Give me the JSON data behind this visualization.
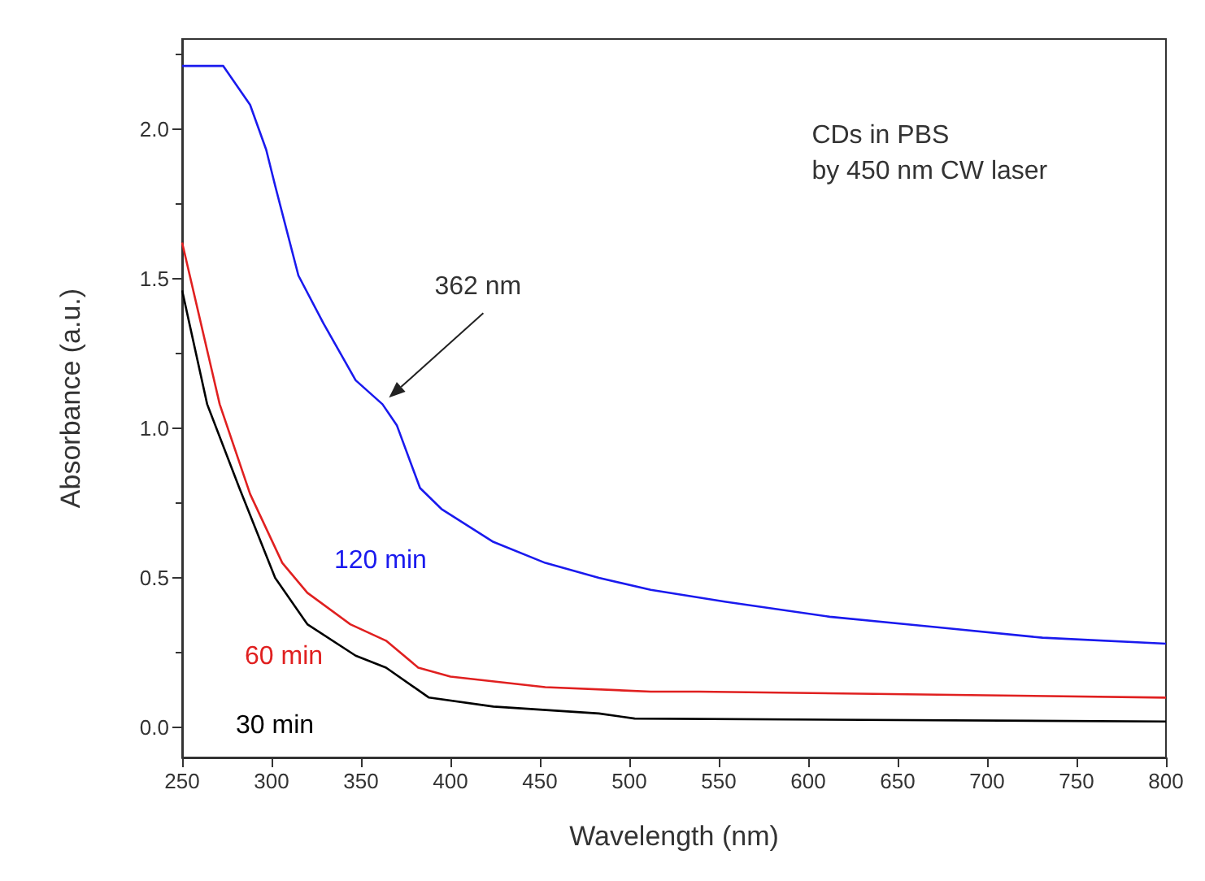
{
  "chart_data": {
    "type": "line",
    "xlabel": "Wavelength (nm)",
    "ylabel": "Absorbance (a.u.)",
    "xlim": [
      250,
      800
    ],
    "xticks": [
      250,
      300,
      350,
      400,
      450,
      500,
      550,
      600,
      650,
      700,
      750,
      800
    ],
    "ylim": [
      -0.1,
      2.3
    ],
    "yticks": [
      {
        "value": 0,
        "label": "0.0"
      },
      0.5,
      {
        "value": 1,
        "label": "1.0"
      },
      1.5,
      {
        "value": 2,
        "label": "2.0"
      }
    ],
    "grid": false,
    "legend": false,
    "marker": "none",
    "line_style": "solid",
    "annotations": [
      "CDs in PBS\nby 450 nm CW laser",
      "362 nm"
    ],
    "series": [
      {
        "name": "30 min",
        "color": "#000000",
        "x": [
          250,
          264,
          282,
          302,
          320,
          347,
          364,
          388,
          424,
          483,
          503,
          800
        ],
        "values": [
          1.46,
          1.08,
          0.8,
          0.5,
          0.345,
          0.24,
          0.2,
          0.1,
          0.07,
          0.047,
          0.03,
          0.02
        ]
      },
      {
        "name": "60 min",
        "color": "#e02020",
        "x": [
          250,
          271,
          288,
          306,
          320,
          344,
          364,
          382,
          400,
          453,
          512,
          539,
          800
        ],
        "values": [
          1.62,
          1.08,
          0.78,
          0.55,
          0.45,
          0.345,
          0.29,
          0.2,
          0.17,
          0.135,
          0.12,
          0.12,
          0.1
        ]
      },
      {
        "name": "120 min",
        "color": "#1a1aee",
        "x": [
          250,
          273,
          288,
          297,
          302,
          315,
          329,
          347,
          362,
          370,
          383,
          395,
          424,
          453,
          483,
          512,
          554,
          612,
          672,
          731,
          800
        ],
        "values": [
          2.21,
          2.21,
          2.08,
          1.93,
          1.81,
          1.51,
          1.35,
          1.16,
          1.08,
          1.01,
          0.8,
          0.73,
          0.62,
          0.55,
          0.5,
          0.46,
          0.42,
          0.37,
          0.335,
          0.3,
          0.28
        ]
      }
    ]
  }
}
